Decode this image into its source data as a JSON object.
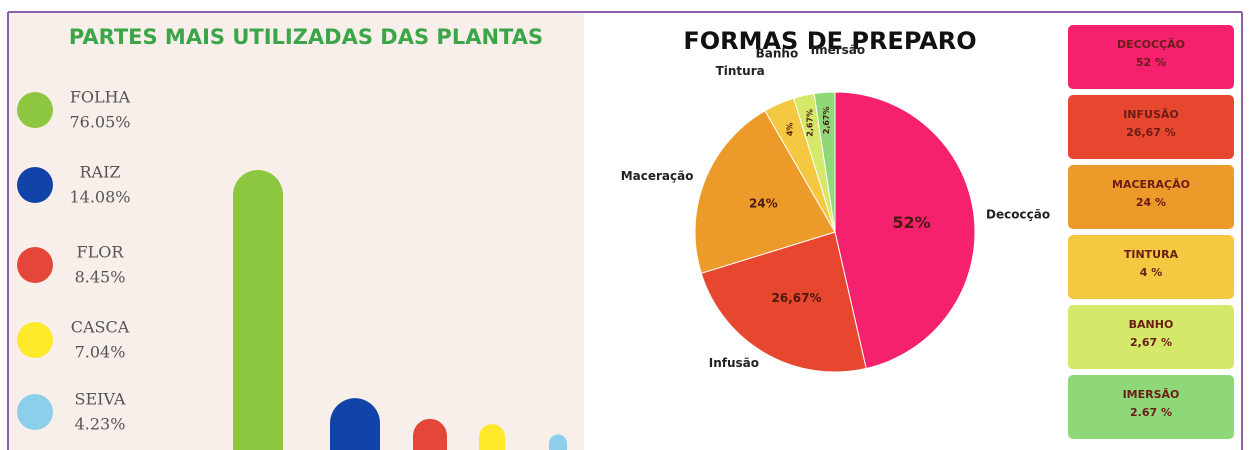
{
  "chart_data": [
    {
      "type": "bar",
      "title": "PARTES MAIS UTILIZADAS DAS PLANTAS",
      "categories": [
        "FOLHA",
        "RAIZ",
        "FLOR",
        "CASCA",
        "SEIVA"
      ],
      "values": [
        76.05,
        14.08,
        8.45,
        7.04,
        4.23
      ],
      "value_labels": [
        "76.05%",
        "14.08%",
        "8.45%",
        "7.04%",
        "4.23%"
      ],
      "colors": [
        "#8dc63f",
        "#1243a8",
        "#e4463a",
        "#ffe92a",
        "#8ccfea"
      ]
    },
    {
      "type": "pie",
      "title": "FORMAS DE PREPARO",
      "categories": [
        "Decocção",
        "Infusão",
        "Maceração",
        "Tintura",
        "Banho",
        "Imersão"
      ],
      "values": [
        52,
        26.67,
        24,
        4,
        2.67,
        2.67
      ],
      "value_labels": [
        "52%",
        "26,67%",
        "24%",
        "4%",
        "2,67%",
        "2,67%"
      ],
      "legend_labels": [
        "DECOCÇÃO",
        "INFUSÃO",
        "MACERAÇÃO",
        "TINTURA",
        "BANHO",
        "IMERSÃO"
      ],
      "legend_value_labels": [
        "52 %",
        "26,67 %",
        "24 %",
        "4 %",
        "2,67 %",
        "2.67 %"
      ],
      "colors": [
        "#f5206e",
        "#e8472f",
        "#ec9a2a",
        "#f5c842",
        "#d6e86a",
        "#8fd87a"
      ]
    }
  ]
}
